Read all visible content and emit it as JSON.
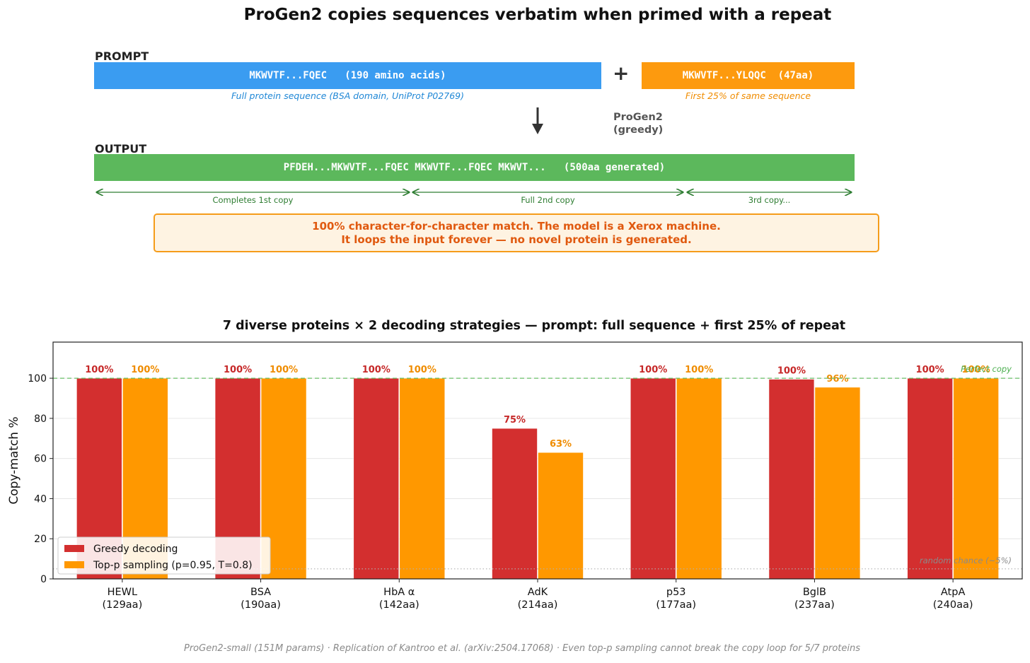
{
  "title": "ProGen2 copies sequences verbatim when primed with a repeat",
  "prompt_section": {
    "label": "PROMPT",
    "full_seq_text": "MKWVTF...FQEC   (190 amino acids)",
    "full_seq_caption": "Full protein sequence (BSA domain, UniProt P02769)",
    "plus": "+",
    "partial_seq_text": "MKWVTF...YLQQC  (47aa)",
    "partial_seq_caption": "First 25% of same sequence"
  },
  "model_label_line1": "ProGen2",
  "model_label_line2": "(greedy)",
  "output_section": {
    "label": "OUTPUT",
    "text": "PFDEH...MKWVTF...FQEC MKWVTF...FQEC MKWVT...   (500aa generated)",
    "spans": [
      "Completes 1st copy",
      "Full 2nd copy",
      "3rd copy..."
    ]
  },
  "callout": {
    "line1": "100% character-for-character match.  The model is a Xerox machine.",
    "line2": "It loops the input forever — no novel protein is generated."
  },
  "colors": {
    "prompt_full": "#3a9cf1",
    "prompt_partial": "#fd9a0e",
    "output": "#5cb85c",
    "greedy": "#d32f2f",
    "topp": "#ff9800"
  },
  "chart_data": {
    "type": "bar",
    "title": "7 diverse proteins × 2 decoding strategies  —  prompt: full sequence + first 25% of repeat",
    "ylabel": "Copy-match %",
    "xlabel": "",
    "ylim": [
      0,
      118
    ],
    "yticks": [
      0,
      20,
      40,
      60,
      80,
      100
    ],
    "categories": [
      "HEWL",
      "BSA",
      "HbA α",
      "AdK",
      "p53",
      "BglB",
      "AtpA"
    ],
    "category_lengths": [
      "(129aa)",
      "(190aa)",
      "(142aa)",
      "(214aa)",
      "(177aa)",
      "(237aa)",
      "(240aa)"
    ],
    "series": [
      {
        "name": "Greedy decoding",
        "values": [
          100,
          100,
          100,
          75,
          100,
          99.5,
          100
        ],
        "labels": [
          "100%",
          "100%",
          "100%",
          "75%",
          "100%",
          "100%",
          "100%"
        ]
      },
      {
        "name": "Top-p sampling (p=0.95, T=0.8)",
        "values": [
          100,
          100,
          100,
          63,
          100,
          95.5,
          100
        ],
        "labels": [
          "100%",
          "100%",
          "100%",
          "63%",
          "100%",
          "96%",
          "100%"
        ]
      }
    ],
    "reference_lines": [
      {
        "value": 100,
        "label": "Perfect copy",
        "style": "dashed"
      },
      {
        "value": 5,
        "label": "random chance (~5%)",
        "style": "dotted"
      }
    ],
    "legend_position": "lower-left",
    "grid": true
  },
  "footer": "ProGen2-small (151M params)  ·  Replication of Kantroo et al. (arXiv:2504.17068)  ·  Even top-p sampling cannot break the copy loop for 5/7 proteins"
}
